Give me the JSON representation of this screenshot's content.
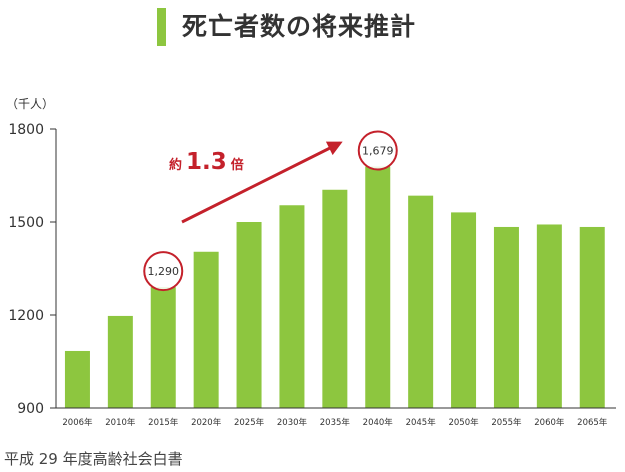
{
  "title": "死亡者数の将来推計",
  "source": "平成 29 年度高齢社会白書",
  "colors": {
    "bar": "#8dc63f",
    "title_bar": "#8dc63f",
    "accent": "#c4212b",
    "axis": "#333333"
  },
  "chart_data": {
    "type": "bar",
    "title": "死亡者数の将来推計",
    "ylabel": "（千人）",
    "xlabel": "",
    "categories": [
      "2006年",
      "2010年",
      "2015年",
      "2020年",
      "2025年",
      "2030年",
      "2035年",
      "2040年",
      "2045年",
      "2050年",
      "2055年",
      "2060年",
      "2065年"
    ],
    "values": [
      1084,
      1197,
      1290,
      1404,
      1500,
      1554,
      1604,
      1679,
      1585,
      1531,
      1484,
      1492,
      1484
    ],
    "ylim": [
      900,
      1800
    ],
    "yticks": [
      900,
      1200,
      1500,
      1800
    ],
    "grid": false,
    "annotations": [
      {
        "category": "2015年",
        "label": "1,290"
      },
      {
        "category": "2040年",
        "label": "1,679"
      },
      {
        "label_prefix": "約",
        "label_value": "1.3",
        "label_suffix": "倍",
        "from": "2015年",
        "to": "2040年"
      }
    ]
  }
}
